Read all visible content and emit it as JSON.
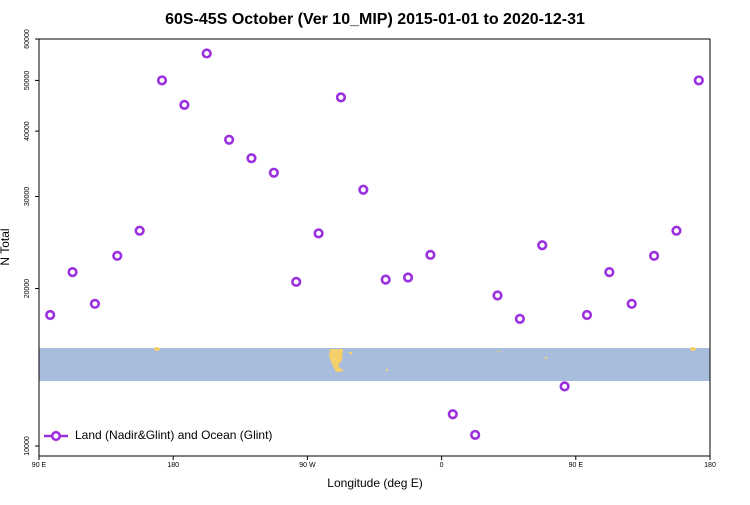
{
  "chart_data": {
    "type": "scatter",
    "title": "60S-45S October (Ver 10_MIP)   2015-01-01 to 2020-12-31",
    "x_label": "Longitude (deg E)",
    "y_label": "N Total",
    "log_y": true,
    "xlim": [
      90,
      540
    ],
    "ylim": [
      10000,
      60000
    ],
    "xticks": [
      {
        "value": 90,
        "label": "90 E"
      },
      180,
      {
        "value": 270,
        "label": "90 W"
      },
      0,
      {
        "value": 450,
        "label": "90 E"
      },
      {
        "value": 540,
        "label": "180"
      }
    ],
    "yticks": [
      10000,
      20000,
      30000,
      40000,
      50000,
      60000
    ],
    "legend": "bottom-left",
    "series": [
      {
        "name": "Land (Nadir&Glint) and Ocean (Glint)",
        "color": "#9b30e0",
        "x": [
          97.5,
          112.5,
          127.5,
          142.5,
          157.5,
          172.5,
          187.5,
          202.5,
          217.5,
          232.5,
          247.5,
          262.5,
          277.5,
          292.5,
          307.5,
          322.5,
          337.5,
          352.5,
          367.5,
          382.5,
          397.5,
          412.5,
          427.5,
          442.5,
          457.5,
          472.5,
          487.5,
          502.5,
          517.5,
          532.5
        ],
        "values": [
          17800,
          21500,
          18700,
          23100,
          25800,
          50000,
          44900,
          56300,
          38500,
          35500,
          33300,
          20600,
          25500,
          46400,
          30900,
          20800,
          21000,
          23200,
          11500,
          10500,
          19400,
          17500,
          24200,
          13000,
          17800,
          21500,
          18700,
          23100,
          25800,
          50000
        ]
      }
    ]
  }
}
